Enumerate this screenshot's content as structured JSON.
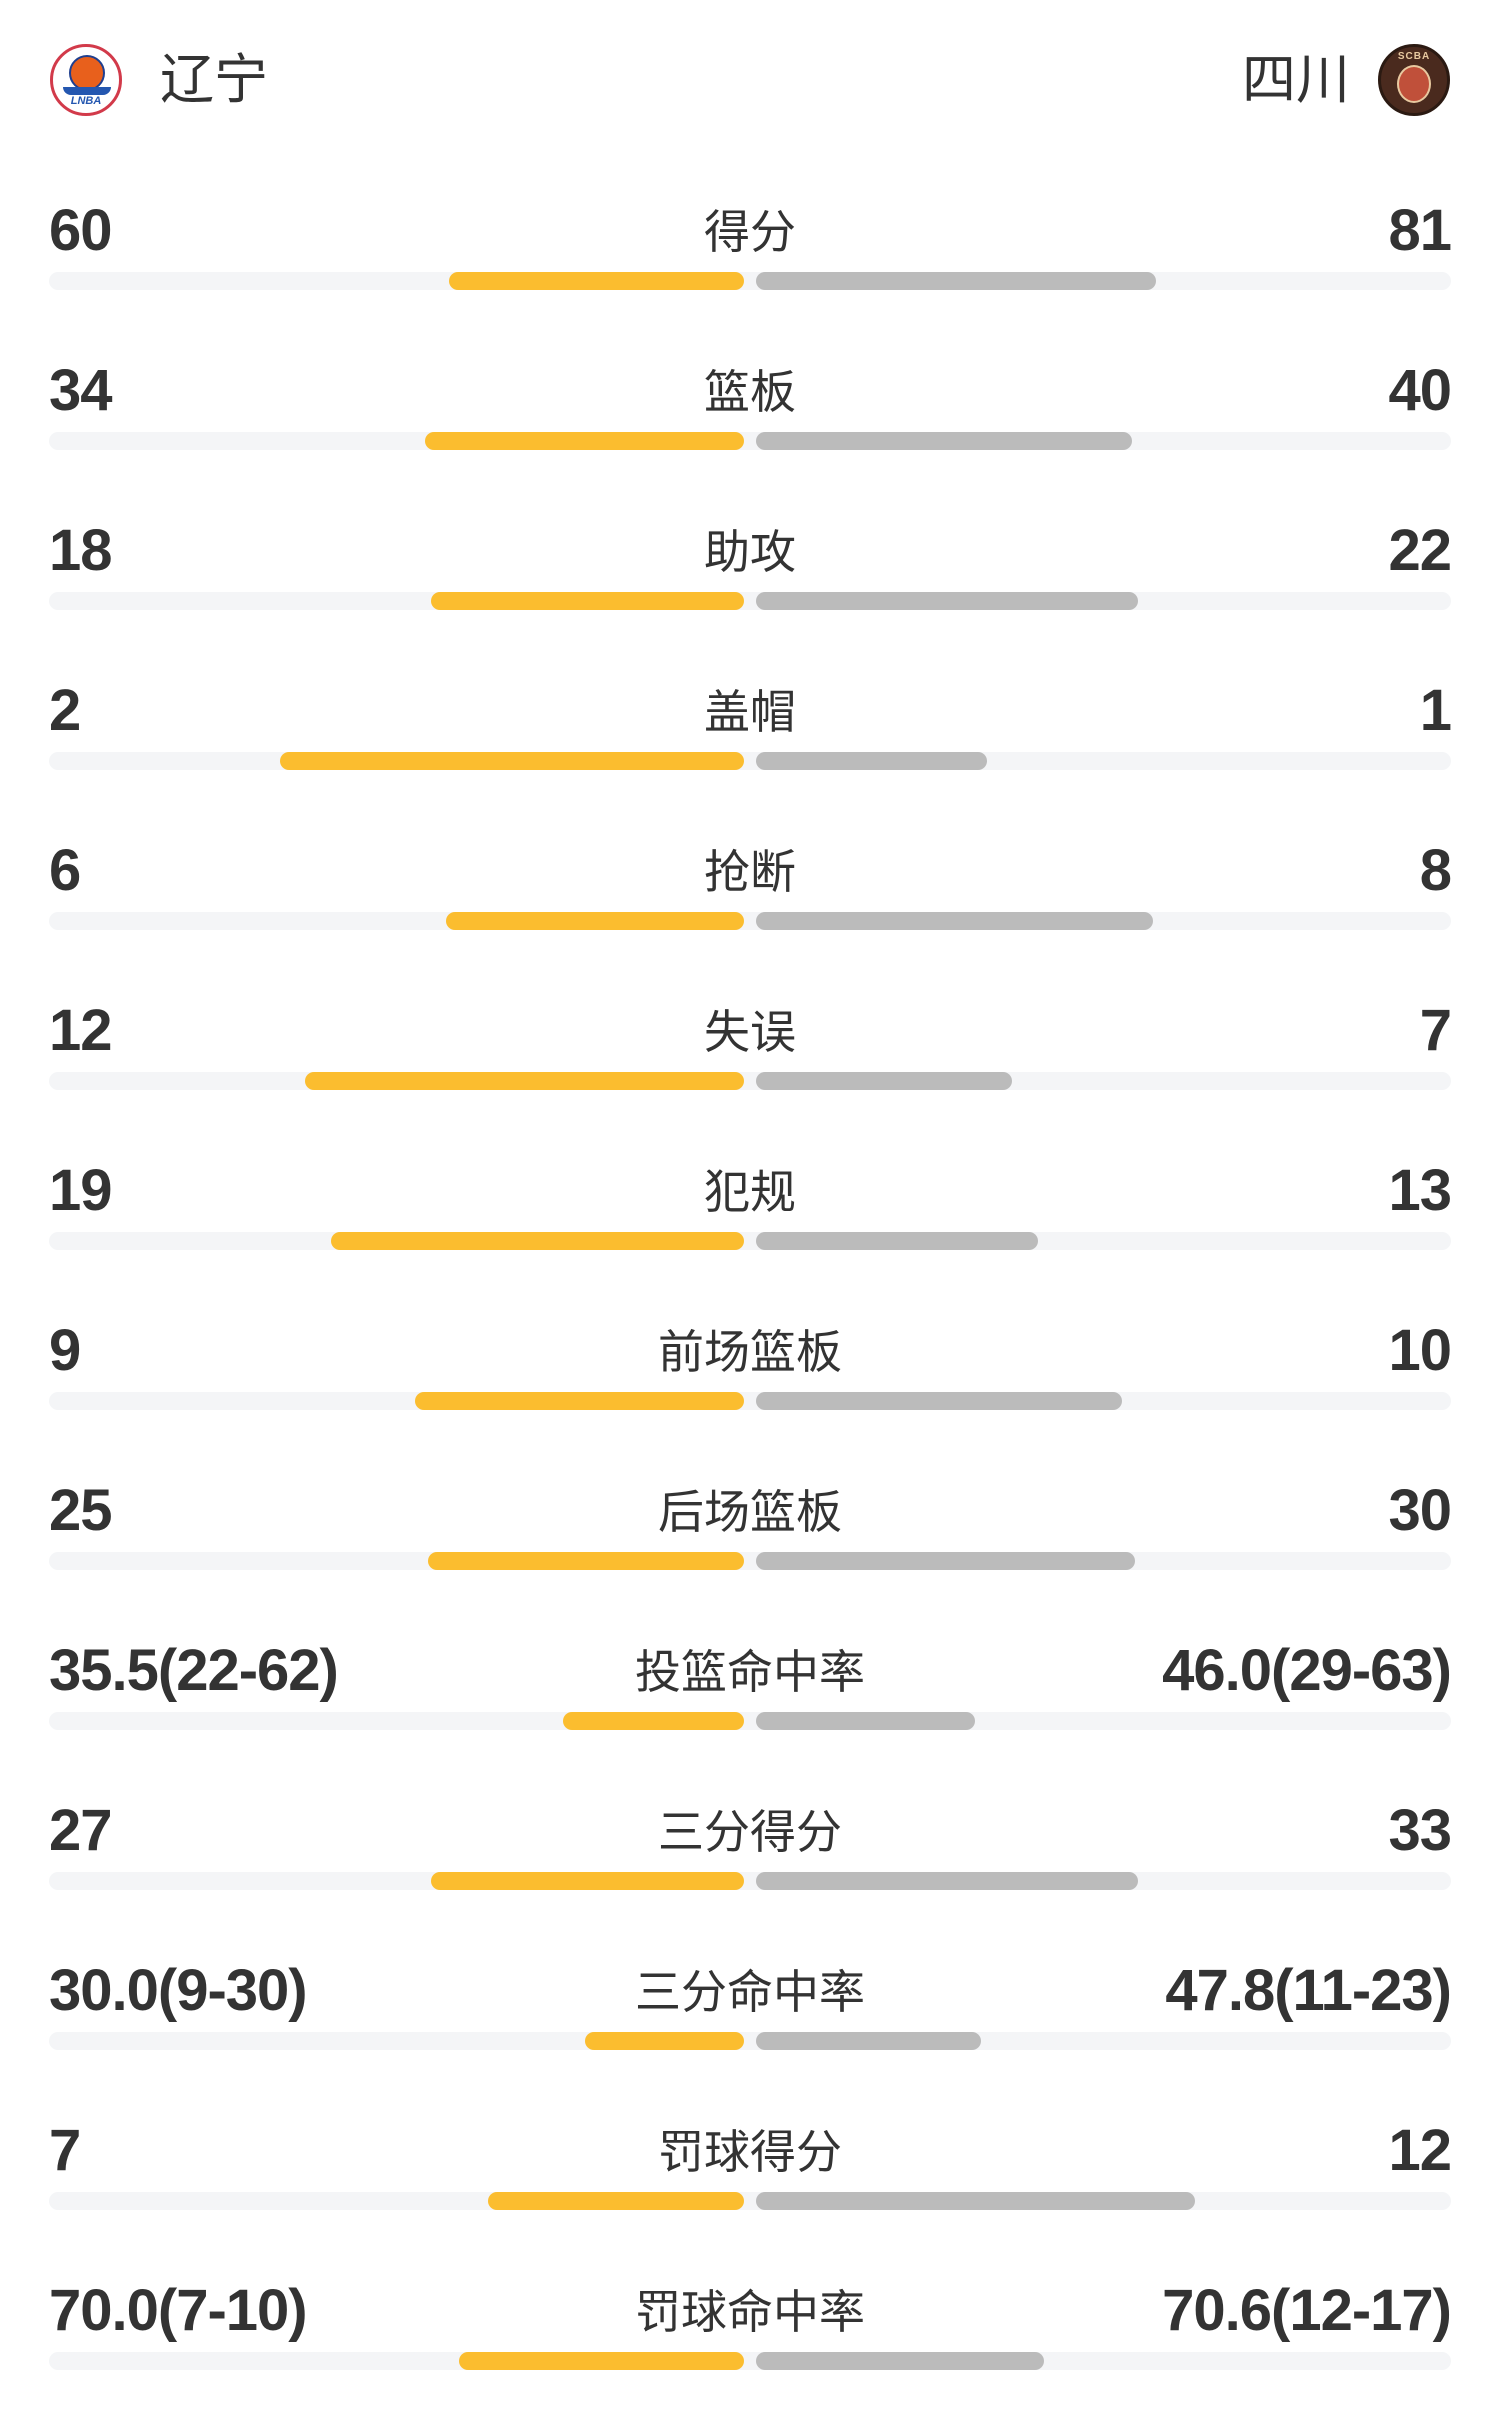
{
  "header": {
    "home_team": "辽宁",
    "away_team": "四川",
    "home_logo_text": "LNBA",
    "away_logo_text": "SCBA"
  },
  "colors": {
    "home_bar": "#fbbd2f",
    "away_bar": "#bbbbbb",
    "track": "#f4f5f7",
    "text": "#333333"
  },
  "stats": [
    {
      "label": "得分",
      "home": "60",
      "away": "81",
      "home_fill": 0.425,
      "away_fill": 0.575
    },
    {
      "label": "篮板",
      "home": "34",
      "away": "40",
      "home_fill": 0.459,
      "away_fill": 0.541
    },
    {
      "label": "助攻",
      "home": "18",
      "away": "22",
      "home_fill": 0.45,
      "away_fill": 0.55
    },
    {
      "label": "盖帽",
      "home": "2",
      "away": "1",
      "home_fill": 0.667,
      "away_fill": 0.333
    },
    {
      "label": "抢断",
      "home": "6",
      "away": "8",
      "home_fill": 0.429,
      "away_fill": 0.571
    },
    {
      "label": "失误",
      "home": "12",
      "away": "7",
      "home_fill": 0.632,
      "away_fill": 0.368
    },
    {
      "label": "犯规",
      "home": "19",
      "away": "13",
      "home_fill": 0.594,
      "away_fill": 0.406
    },
    {
      "label": "前场篮板",
      "home": "9",
      "away": "10",
      "home_fill": 0.474,
      "away_fill": 0.526
    },
    {
      "label": "后场篮板",
      "home": "25",
      "away": "30",
      "home_fill": 0.455,
      "away_fill": 0.545
    },
    {
      "label": "投篮命中率",
      "home": "35.5(22-62)",
      "away": "46.0(29-63)",
      "home_fill": 0.26,
      "away_fill": 0.315
    },
    {
      "label": "三分得分",
      "home": "27",
      "away": "33",
      "home_fill": 0.45,
      "away_fill": 0.55
    },
    {
      "label": "三分命中率",
      "home": "30.0(9-30)",
      "away": "47.8(11-23)",
      "home_fill": 0.229,
      "away_fill": 0.324
    },
    {
      "label": "罚球得分",
      "home": "7",
      "away": "12",
      "home_fill": 0.368,
      "away_fill": 0.632
    },
    {
      "label": "罚球命中率",
      "home": "70.0(7-10)",
      "away": "70.6(12-17)",
      "home_fill": 0.41,
      "away_fill": 0.414
    }
  ]
}
